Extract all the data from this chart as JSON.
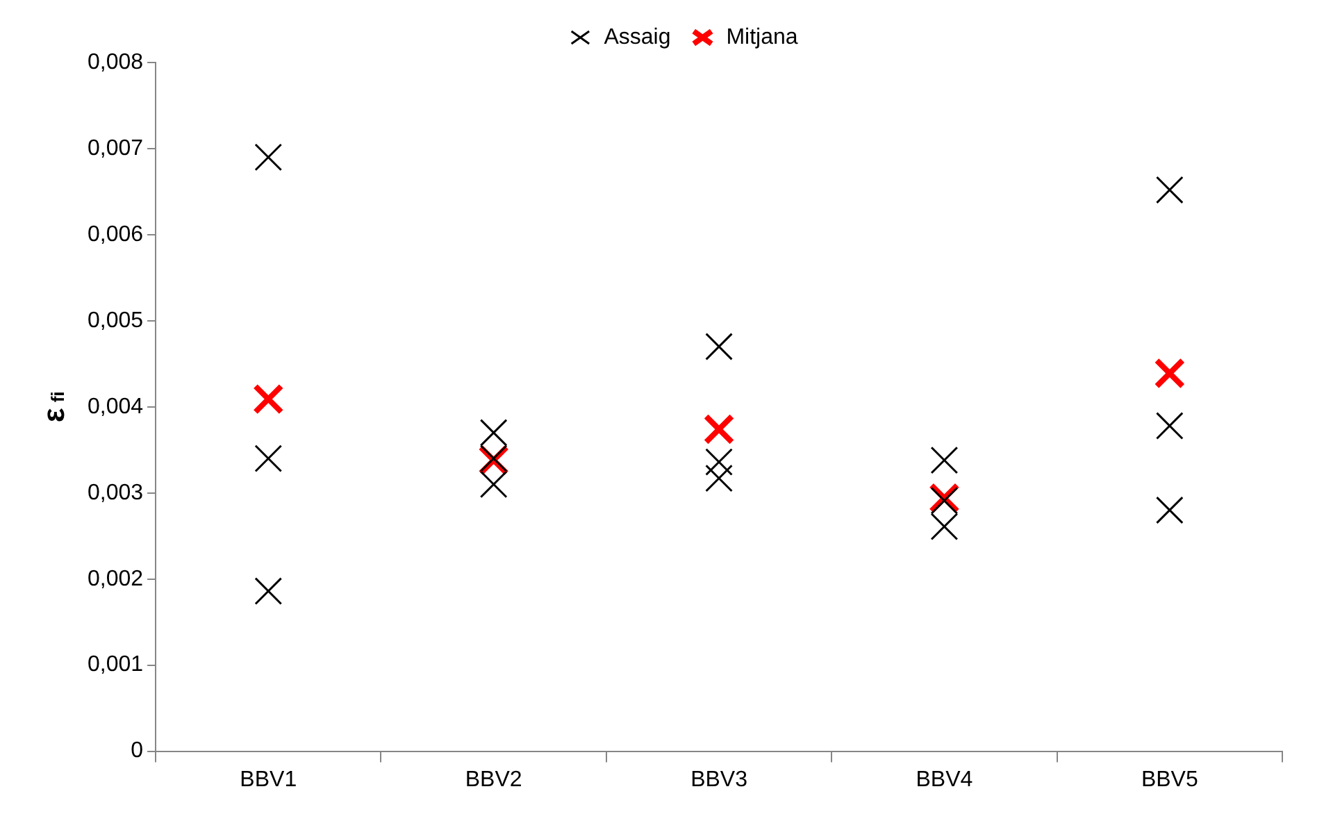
{
  "chart_data": {
    "type": "scatter",
    "ylabel": "ε$_{fi}$",
    "categories": [
      "BBV1",
      "BBV2",
      "BBV3",
      "BBV4",
      "BBV5"
    ],
    "series": [
      {
        "name": "Assaig",
        "color": "#000000",
        "x": [
          "BBV1",
          "BBV1",
          "BBV1",
          "BBV2",
          "BBV2",
          "BBV2",
          "BBV3",
          "BBV3",
          "BBV3",
          "BBV4",
          "BBV4",
          "BBV4",
          "BBV5",
          "BBV5",
          "BBV5"
        ],
        "values": [
          0.0069,
          0.0034,
          0.00186,
          0.0037,
          0.0034,
          0.0031,
          0.0047,
          0.00336,
          0.00317,
          0.00338,
          0.00291,
          0.00261,
          0.00652,
          0.00378,
          0.0028
        ]
      },
      {
        "name": "Mitjana",
        "color": "#ff0000",
        "x": [
          "BBV1",
          "BBV2",
          "BBV3",
          "BBV4",
          "BBV5"
        ],
        "values": [
          0.00409,
          0.00338,
          0.00374,
          0.00294,
          0.00439
        ]
      }
    ],
    "ylim": [
      0,
      0.008
    ],
    "yticks": [
      {
        "value": 0,
        "label": "0"
      },
      {
        "value": 0.001,
        "label": "0,001"
      },
      {
        "value": 0.002,
        "label": "0,002"
      },
      {
        "value": 0.003,
        "label": "0,003"
      },
      {
        "value": 0.004,
        "label": "0,004"
      },
      {
        "value": 0.005,
        "label": "0,005"
      },
      {
        "value": 0.006,
        "label": "0,006"
      },
      {
        "value": 0.007,
        "label": "0,007"
      },
      {
        "value": 0.008,
        "label": "0,008"
      }
    ],
    "grid": false,
    "legend": "top",
    "marker": "cross"
  }
}
